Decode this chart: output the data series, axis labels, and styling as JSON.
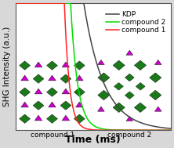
{
  "title": "",
  "xlabel": "Time (ms)",
  "ylabel": "SHG Intensity (a.u.)",
  "background_color": "#d8d8d8",
  "plot_bg_color": "#ffffff",
  "line_colors": {
    "compound1": "#ff2222",
    "compound2": "#00dd00",
    "kdp": "#444444"
  },
  "legend_labels": [
    "compound 1",
    "compound 2",
    "KDP"
  ],
  "xlabel_fontsize": 9,
  "ylabel_fontsize": 7.5,
  "legend_fontsize": 6.5,
  "label_fontsize": 6.5,
  "image_left_label": "compound 1",
  "image_right_label": "compound 2",
  "green_dark": "#1a7a1a",
  "green_mid": "#2d8c2d",
  "magenta": "#cc00cc",
  "magenta_dark": "#aa00aa"
}
